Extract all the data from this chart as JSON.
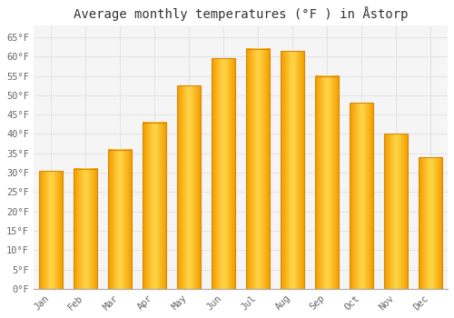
{
  "months": [
    "Jan",
    "Feb",
    "Mar",
    "Apr",
    "May",
    "Jun",
    "Jul",
    "Aug",
    "Sep",
    "Oct",
    "Nov",
    "Dec"
  ],
  "values": [
    30.5,
    31.0,
    36.0,
    43.0,
    52.5,
    59.5,
    62.0,
    61.5,
    55.0,
    48.0,
    40.0,
    34.0
  ],
  "title": "Average monthly temperatures (°F ) in Åstorp",
  "bar_color_center": "#FFD966",
  "bar_color_edge_dark": "#F5A623",
  "bar_border_color": "#D4880A",
  "background_color": "#ffffff",
  "plot_bg_color": "#f5f5f5",
  "grid_color": "#e0e0e0",
  "ylim": [
    0,
    68
  ],
  "yticks": [
    0,
    5,
    10,
    15,
    20,
    25,
    30,
    35,
    40,
    45,
    50,
    55,
    60,
    65
  ],
  "title_fontsize": 10,
  "tick_fontsize": 7.5,
  "tick_font_family": "monospace"
}
